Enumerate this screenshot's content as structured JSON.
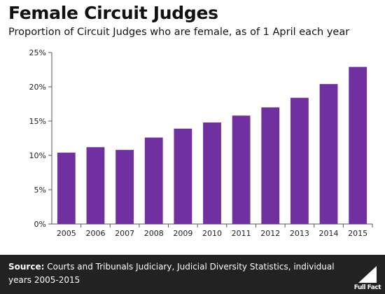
{
  "header": {
    "title": "Female Circuit Judges",
    "subtitle": "Proportion of Circuit Judges who are female, as of 1 April each year"
  },
  "footer": {
    "source_label": "Source:",
    "source_text": "Courts and Tribunals Judiciary, Judicial Diversity Statistics, individual years 2005-2015",
    "logo_text": "Full Fact"
  },
  "colors": {
    "bar": "#7030a0",
    "footer_bg": "#222222"
  },
  "chart_data": {
    "type": "bar",
    "title": "Female Circuit Judges",
    "subtitle": "Proportion of Circuit Judges who are female, as of 1 April each year",
    "xlabel": "",
    "ylabel": "",
    "categories": [
      "2005",
      "2006",
      "2007",
      "2008",
      "2009",
      "2010",
      "2011",
      "2012",
      "2013",
      "2014",
      "2015"
    ],
    "values": [
      10.4,
      11.2,
      10.8,
      12.6,
      13.9,
      14.8,
      15.8,
      17.0,
      18.4,
      20.4,
      22.9
    ],
    "ylim": [
      0,
      25
    ],
    "yticks": [
      0,
      5,
      10,
      15,
      20,
      25
    ],
    "ytick_labels": [
      "0%",
      "5%",
      "10%",
      "15%",
      "20%",
      "25%"
    ],
    "grid": false,
    "legend": "none"
  }
}
